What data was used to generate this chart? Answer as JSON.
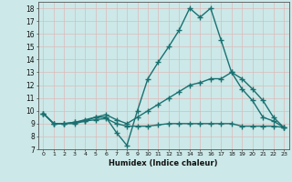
{
  "xlabel": "Humidex (Indice chaleur)",
  "bg_color": "#cce8e8",
  "grid_color": "#aacccc",
  "line_color": "#1a7070",
  "xlim": [
    -0.5,
    23.5
  ],
  "ylim": [
    7,
    18.5
  ],
  "yticks": [
    7,
    8,
    9,
    10,
    11,
    12,
    13,
    14,
    15,
    16,
    17,
    18
  ],
  "xticks": [
    0,
    1,
    2,
    3,
    4,
    5,
    6,
    7,
    8,
    9,
    10,
    11,
    12,
    13,
    14,
    15,
    16,
    17,
    18,
    19,
    20,
    21,
    22,
    23
  ],
  "line1_y": [
    9.8,
    9.0,
    9.0,
    9.0,
    9.2,
    9.5,
    9.5,
    8.3,
    7.3,
    10.0,
    12.5,
    13.8,
    15.0,
    16.3,
    18.0,
    17.3,
    18.0,
    15.5,
    13.0,
    11.7,
    10.8,
    9.5,
    9.2,
    8.7
  ],
  "line2_y": [
    9.8,
    9.0,
    9.0,
    9.1,
    9.3,
    9.5,
    9.7,
    9.3,
    9.0,
    9.5,
    10.0,
    10.5,
    11.0,
    11.5,
    12.0,
    12.2,
    12.5,
    12.5,
    13.0,
    12.5,
    11.7,
    10.8,
    9.5,
    8.7
  ],
  "line3_y": [
    9.8,
    9.0,
    9.0,
    9.1,
    9.2,
    9.3,
    9.4,
    9.0,
    8.8,
    8.8,
    8.8,
    8.9,
    9.0,
    9.0,
    9.0,
    9.0,
    9.0,
    9.0,
    9.0,
    8.8,
    8.8,
    8.8,
    8.8,
    8.7
  ]
}
